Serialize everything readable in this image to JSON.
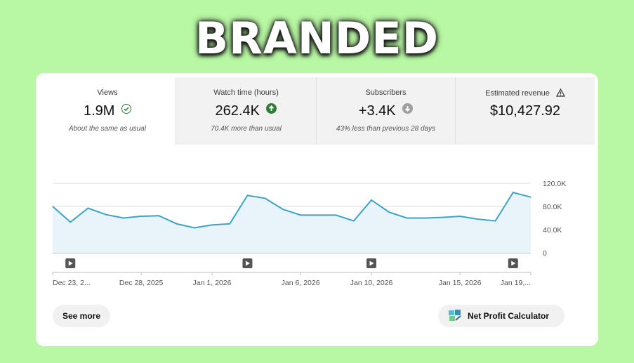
{
  "headline": "BRANDED",
  "metrics": [
    {
      "label": "Views",
      "value": "1.9M",
      "note": "About the same as usual",
      "status_icon": "check-circle-icon"
    },
    {
      "label": "Watch time (hours)",
      "value": "262.4K",
      "note": "70.4K more than usual",
      "status_icon": "arrow-up-circle-icon"
    },
    {
      "label": "Subscribers",
      "value": "+3.4K",
      "note": "43% less than previous 28 days",
      "status_icon": "arrow-down-circle-icon"
    },
    {
      "label": "Estimated revenue",
      "value": "$10,427.92",
      "note": "",
      "status_icon": "warning-icon"
    }
  ],
  "colors": {
    "background": "#b8f7a4",
    "line": "#3ba3c8",
    "fill": "#e8f4fa",
    "up": "#2e7d32",
    "down": "#9e9e9e"
  },
  "chart_data": {
    "type": "area",
    "x": [
      "Dec 23",
      "Dec 24",
      "Dec 25",
      "Dec 26",
      "Dec 27",
      "Dec 28",
      "Dec 29",
      "Dec 30",
      "Dec 31",
      "Jan 1",
      "Jan 2",
      "Jan 3",
      "Jan 4",
      "Jan 5",
      "Jan 6",
      "Jan 7",
      "Jan 8",
      "Jan 9",
      "Jan 10",
      "Jan 11",
      "Jan 12",
      "Jan 13",
      "Jan 14",
      "Jan 15",
      "Jan 16",
      "Jan 17",
      "Jan 18",
      "Jan 19"
    ],
    "values": [
      80000,
      53000,
      77000,
      66000,
      60000,
      63000,
      64000,
      50000,
      43000,
      48000,
      50000,
      99000,
      94000,
      75000,
      65000,
      65000,
      65000,
      55000,
      91000,
      70000,
      60000,
      60000,
      61000,
      63000,
      58000,
      55000,
      104000,
      96000
    ],
    "ylim": [
      0,
      120000
    ],
    "yticks": [
      "120.0K",
      "80.0K",
      "40.0K",
      "0"
    ],
    "xticks": [
      "Dec 23, 2...",
      "Dec 28, 2025",
      "Jan 1, 2026",
      "Jan 6, 2026",
      "Jan 10, 2026",
      "Jan 15, 2026",
      "Jan 19,..."
    ],
    "video_markers": [
      1,
      11,
      18,
      26
    ],
    "grid": true
  },
  "actions": {
    "see_more": "See more",
    "calculator": "Net Profit Calculator"
  }
}
